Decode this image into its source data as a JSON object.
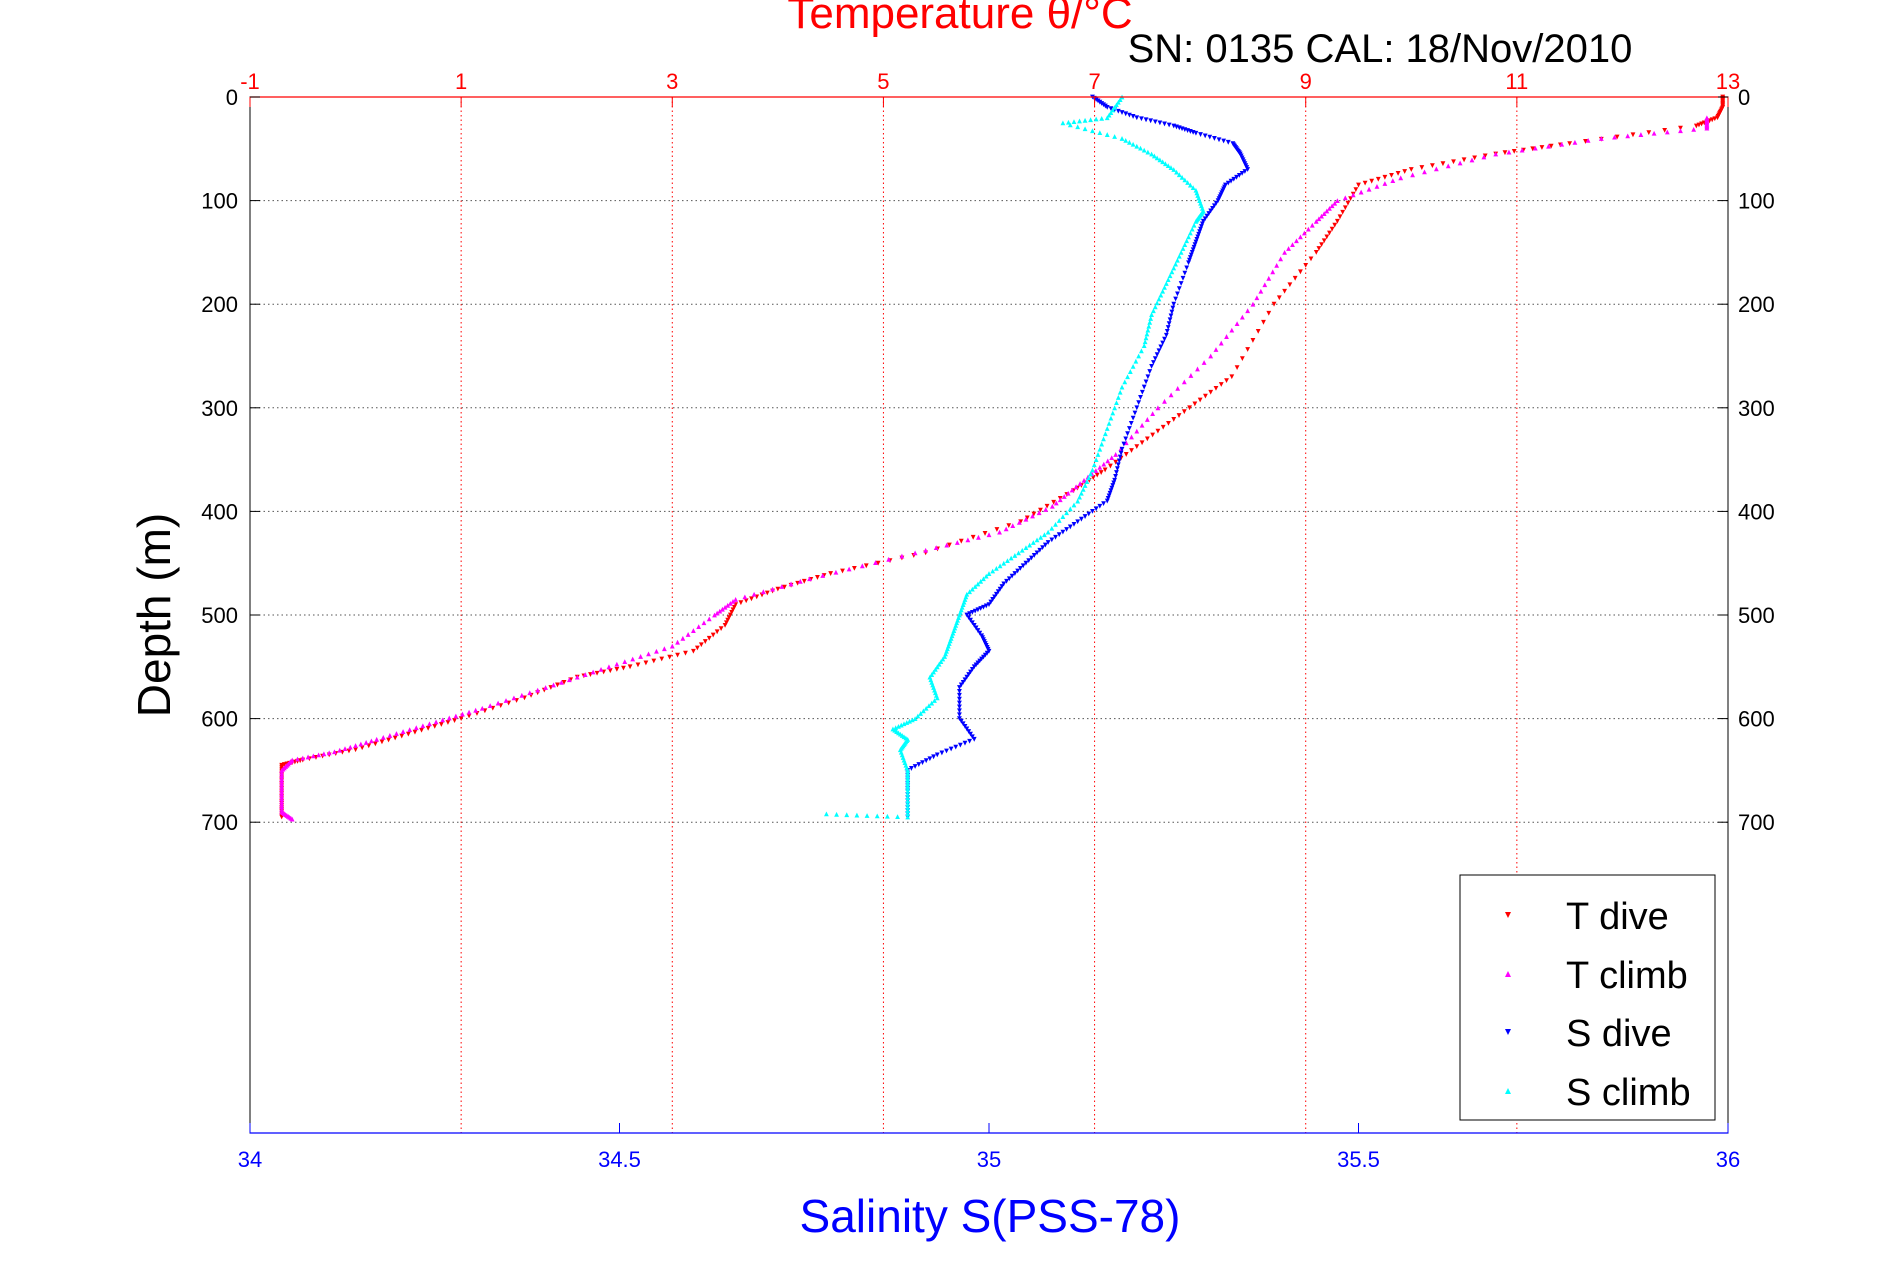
{
  "chart_data": {
    "type": "scatter",
    "title": "Temperature θ/°C",
    "subtitle": "SN: 0135  CAL: 18/Nov/2010",
    "xlabel": "Salinity S(PSS-78)",
    "ylabel": "Depth (m)",
    "x_top": {
      "range": [
        -1,
        13
      ],
      "ticks": [
        "-1",
        "1",
        "3",
        "5",
        "7",
        "9",
        "11",
        "13"
      ]
    },
    "x_bottom": {
      "range": [
        34,
        36
      ],
      "ticks": [
        "34",
        "34.5",
        "35",
        "35.5",
        "36"
      ]
    },
    "y": {
      "range": [
        0,
        1000
      ],
      "ticks": [
        "0",
        "100",
        "200",
        "300",
        "400",
        "500",
        "600",
        "700"
      ],
      "reversed": true
    },
    "grid": true,
    "legend_position": "bottom-right",
    "series": [
      {
        "name": "T dive",
        "axis": "top",
        "color": "#ff0000",
        "marker": "triangle-down",
        "points": [
          [
            12.95,
            0
          ],
          [
            12.95,
            10
          ],
          [
            12.9,
            20
          ],
          [
            12.7,
            28
          ],
          [
            11.5,
            45
          ],
          [
            10.8,
            55
          ],
          [
            10.0,
            70
          ],
          [
            9.5,
            85
          ],
          [
            9.3,
            120
          ],
          [
            9.1,
            150
          ],
          [
            8.7,
            200
          ],
          [
            8.3,
            270
          ],
          [
            7.9,
            300
          ],
          [
            7.5,
            330
          ],
          [
            7.1,
            360
          ],
          [
            6.8,
            380
          ],
          [
            6.3,
            410
          ],
          [
            5.4,
            440
          ],
          [
            4.5,
            460
          ],
          [
            4.0,
            475
          ],
          [
            3.6,
            490
          ],
          [
            3.5,
            510
          ],
          [
            3.2,
            535
          ],
          [
            2.6,
            550
          ],
          [
            2.1,
            560
          ],
          [
            1.6,
            580
          ],
          [
            1.0,
            600
          ],
          [
            0.5,
            615
          ],
          [
            0.0,
            630
          ],
          [
            -0.5,
            640
          ],
          [
            -0.7,
            645
          ],
          [
            -0.7,
            660
          ],
          [
            -0.7,
            680
          ],
          [
            -0.7,
            695
          ]
        ]
      },
      {
        "name": "T climb",
        "axis": "top",
        "color": "#ff00ff",
        "marker": "triangle-up",
        "points": [
          [
            12.8,
            20
          ],
          [
            12.8,
            30
          ],
          [
            11.8,
            40
          ],
          [
            10.8,
            55
          ],
          [
            9.9,
            78
          ],
          [
            9.3,
            100
          ],
          [
            9.1,
            120
          ],
          [
            8.8,
            150
          ],
          [
            8.5,
            200
          ],
          [
            8.1,
            250
          ],
          [
            7.6,
            300
          ],
          [
            7.2,
            345
          ],
          [
            6.9,
            370
          ],
          [
            6.6,
            395
          ],
          [
            6.1,
            420
          ],
          [
            5.3,
            440
          ],
          [
            4.3,
            465
          ],
          [
            3.6,
            485
          ],
          [
            3.4,
            500
          ],
          [
            3.0,
            530
          ],
          [
            2.4,
            550
          ],
          [
            1.8,
            570
          ],
          [
            1.2,
            590
          ],
          [
            0.7,
            605
          ],
          [
            0.2,
            620
          ],
          [
            -0.2,
            632
          ],
          [
            -0.6,
            640
          ],
          [
            -0.7,
            650
          ],
          [
            -0.7,
            670
          ],
          [
            -0.7,
            690
          ],
          [
            -0.6,
            697
          ]
        ]
      },
      {
        "name": "S dive",
        "axis": "bottom",
        "color": "#0000ff",
        "marker": "triangle-down",
        "points": [
          [
            35.14,
            0
          ],
          [
            35.16,
            10
          ],
          [
            35.2,
            20
          ],
          [
            35.25,
            28
          ],
          [
            35.28,
            35
          ],
          [
            35.33,
            45
          ],
          [
            35.34,
            55
          ],
          [
            35.35,
            70
          ],
          [
            35.32,
            85
          ],
          [
            35.31,
            100
          ],
          [
            35.29,
            120
          ],
          [
            35.28,
            140
          ],
          [
            35.27,
            160
          ],
          [
            35.25,
            200
          ],
          [
            35.24,
            230
          ],
          [
            35.22,
            260
          ],
          [
            35.2,
            300
          ],
          [
            35.18,
            340
          ],
          [
            35.17,
            370
          ],
          [
            35.16,
            390
          ],
          [
            35.12,
            410
          ],
          [
            35.08,
            430
          ],
          [
            35.05,
            450
          ],
          [
            35.02,
            470
          ],
          [
            35.0,
            490
          ],
          [
            34.97,
            500
          ],
          [
            34.99,
            520
          ],
          [
            35.0,
            535
          ],
          [
            34.98,
            550
          ],
          [
            34.96,
            570
          ],
          [
            34.96,
            600
          ],
          [
            34.98,
            620
          ],
          [
            34.93,
            635
          ],
          [
            34.89,
            650
          ],
          [
            34.89,
            670
          ],
          [
            34.89,
            695
          ]
        ]
      },
      {
        "name": "S climb",
        "axis": "bottom",
        "color": "#00ffff",
        "marker": "triangle-up",
        "points": [
          [
            35.18,
            0
          ],
          [
            35.16,
            20
          ],
          [
            35.1,
            25
          ],
          [
            35.18,
            40
          ],
          [
            35.22,
            55
          ],
          [
            35.25,
            70
          ],
          [
            35.28,
            90
          ],
          [
            35.29,
            110
          ],
          [
            35.28,
            120
          ],
          [
            35.26,
            150
          ],
          [
            35.24,
            180
          ],
          [
            35.22,
            210
          ],
          [
            35.21,
            240
          ],
          [
            35.18,
            280
          ],
          [
            35.16,
            320
          ],
          [
            35.14,
            360
          ],
          [
            35.12,
            390
          ],
          [
            35.08,
            420
          ],
          [
            35.04,
            440
          ],
          [
            35.0,
            460
          ],
          [
            34.97,
            480
          ],
          [
            34.96,
            500
          ],
          [
            34.95,
            520
          ],
          [
            34.94,
            540
          ],
          [
            34.92,
            560
          ],
          [
            34.93,
            580
          ],
          [
            34.9,
            600
          ],
          [
            34.87,
            610
          ],
          [
            34.89,
            620
          ],
          [
            34.88,
            630
          ],
          [
            34.89,
            650
          ],
          [
            34.89,
            670
          ],
          [
            34.89,
            695
          ],
          [
            34.78,
            692
          ]
        ]
      }
    ]
  }
}
